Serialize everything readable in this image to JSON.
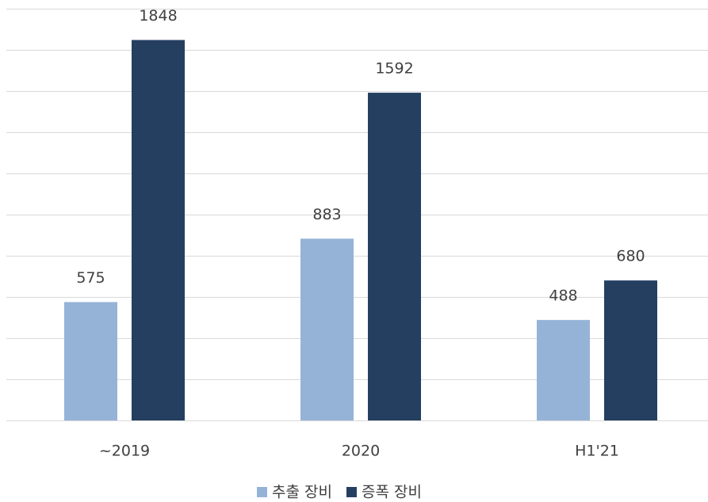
{
  "chart_data": {
    "type": "bar",
    "categories": [
      "~2019",
      "2020",
      "H1'21"
    ],
    "series": [
      {
        "name": "추출 장비",
        "color": "#95b3d7",
        "values": [
          575,
          883,
          488
        ]
      },
      {
        "name": "증폭 장비",
        "color": "#243f60",
        "values": [
          1848,
          1592,
          680
        ]
      }
    ],
    "ylim": [
      0,
      2000
    ],
    "yticks": [
      0,
      200,
      400,
      600,
      800,
      1000,
      1200,
      1400,
      1600,
      1800,
      2000
    ],
    "grid": true,
    "legend": "bottom"
  }
}
